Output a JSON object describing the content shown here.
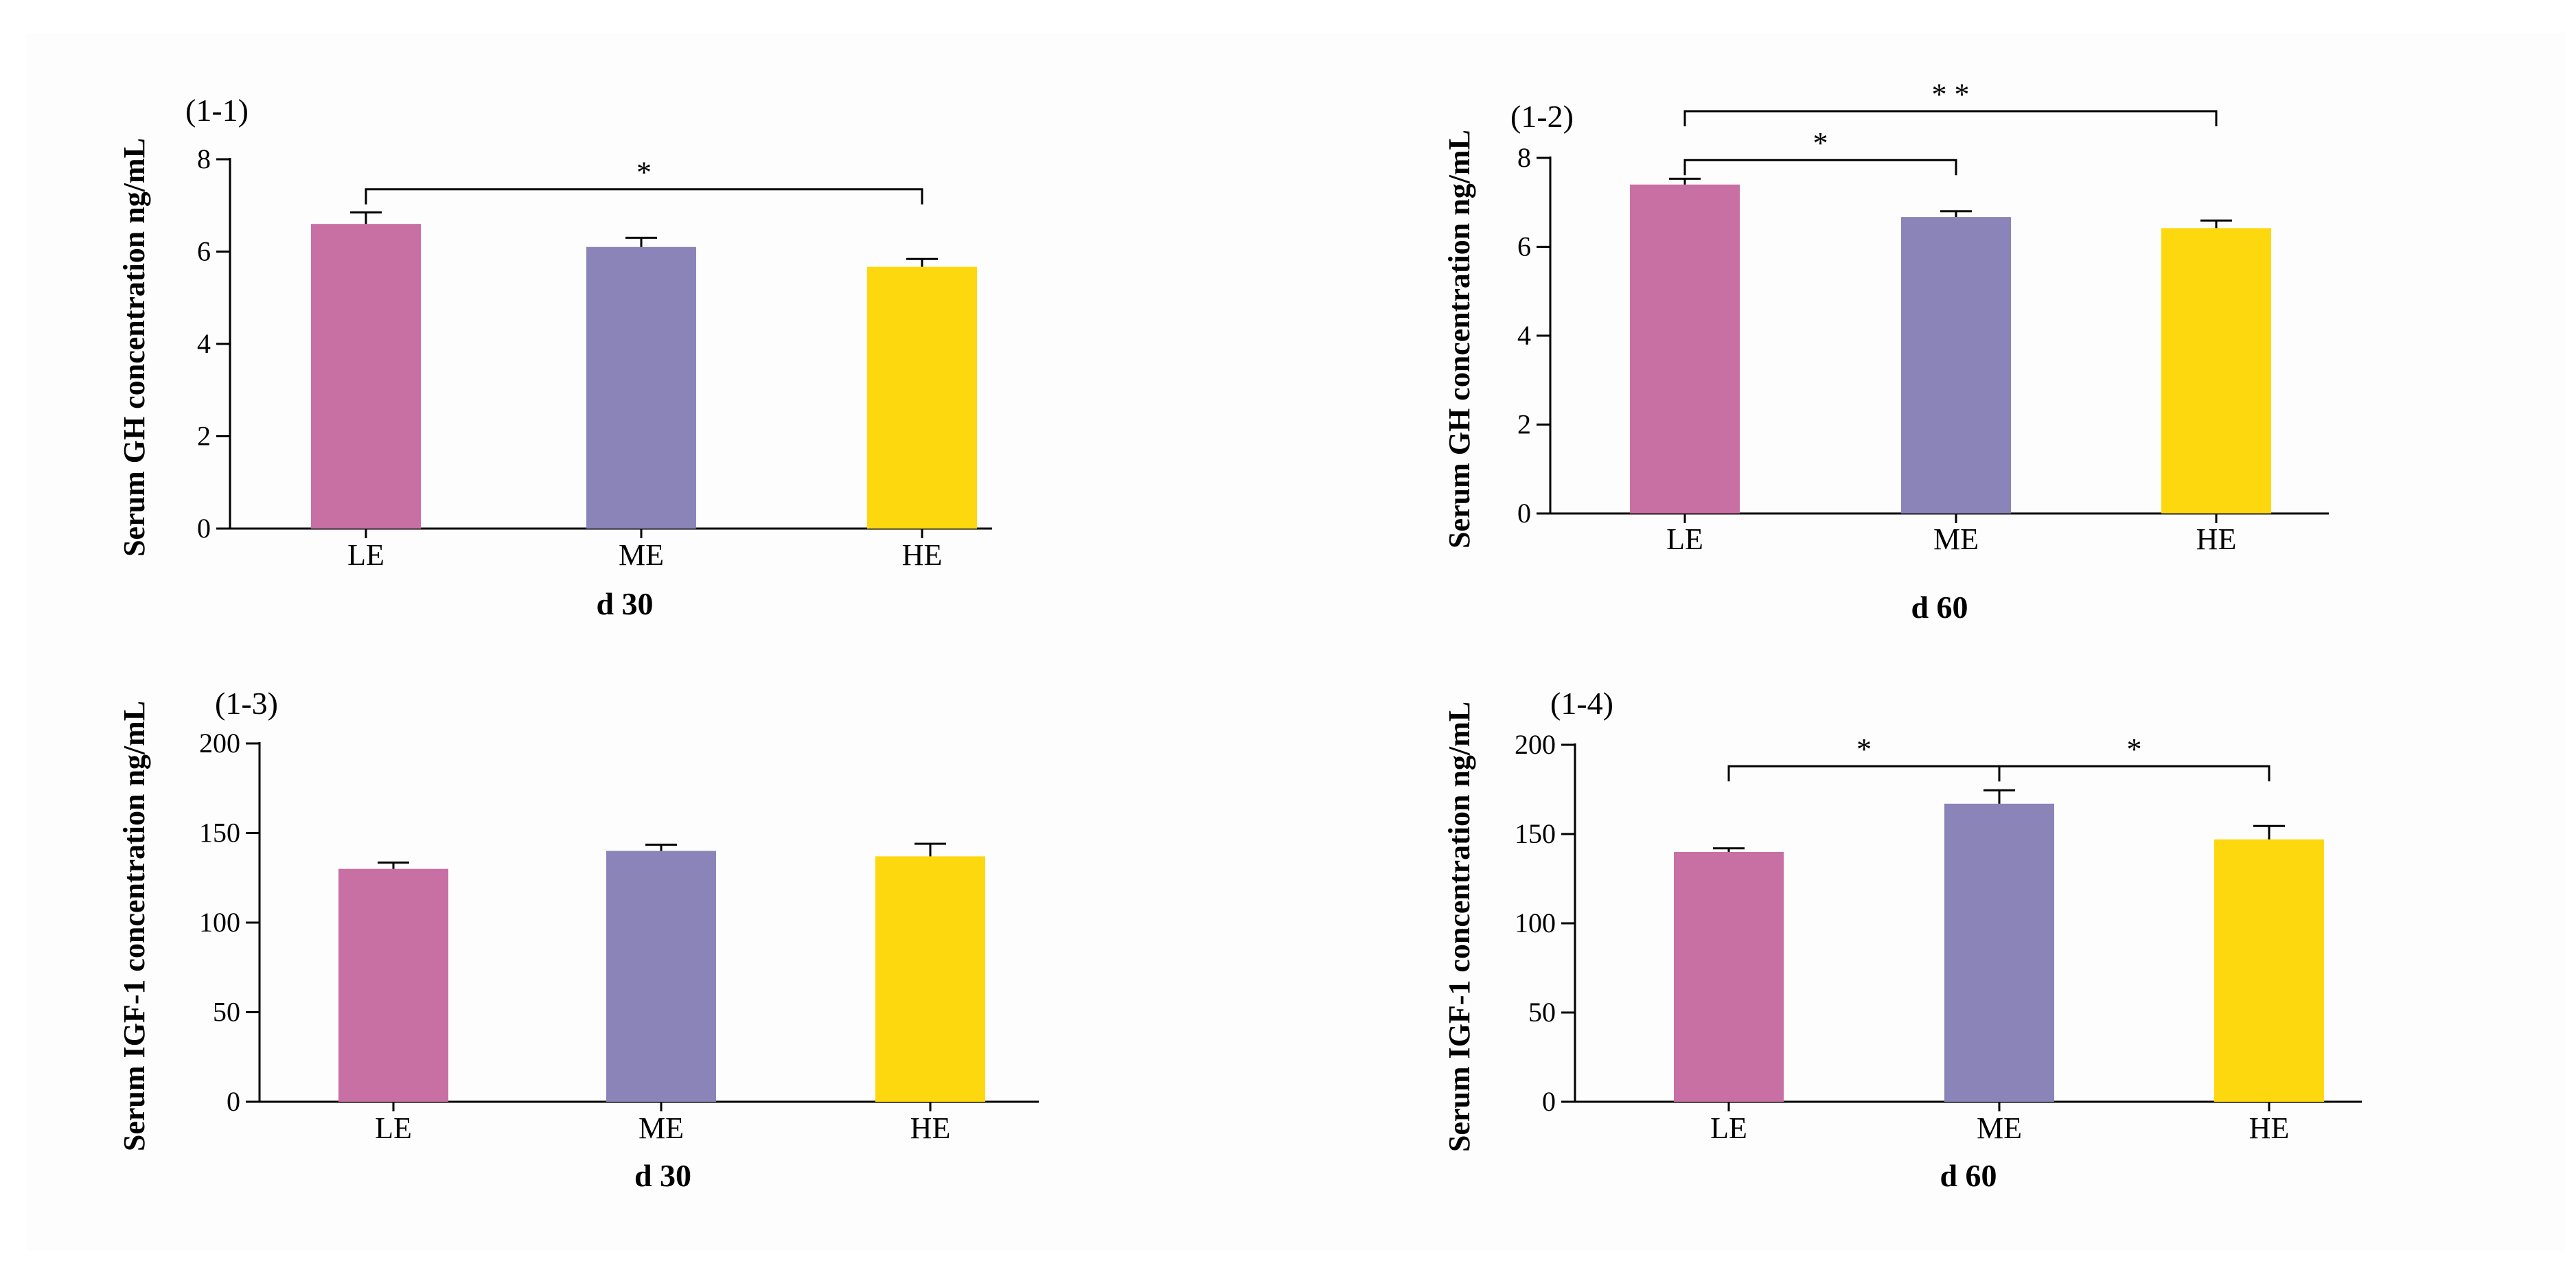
{
  "chart_data": [
    {
      "type": "bar",
      "panel": "(1-1)",
      "categories": [
        "LE",
        "ME",
        "HE"
      ],
      "values": [
        6.6,
        6.1,
        5.67
      ],
      "errors": [
        0.25,
        0.2,
        0.17
      ],
      "colors": [
        "#c86fa4",
        "#8b84b8",
        "#fdd80f"
      ],
      "xlabel": "d 30",
      "ylabel": "Serum GH concentration ng/mL",
      "ylim": [
        0,
        8
      ],
      "yticks": [
        "0",
        "2",
        "4",
        "6",
        "8"
      ],
      "significance": [
        {
          "from": 0,
          "to": 2,
          "label": "*",
          "level": 7.35
        }
      ]
    },
    {
      "type": "bar",
      "panel": "(1-2)",
      "categories": [
        "LE",
        "ME",
        "HE"
      ],
      "values": [
        7.4,
        6.67,
        6.42
      ],
      "errors": [
        0.13,
        0.13,
        0.17
      ],
      "colors": [
        "#c86fa4",
        "#8b84b8",
        "#fdd80f"
      ],
      "xlabel": "d 60",
      "ylabel": "Serum GH concentration ng/mL",
      "ylim": [
        0,
        8
      ],
      "yticks": [
        "0",
        "2",
        "4",
        "6",
        "8"
      ],
      "significance": [
        {
          "from": 0,
          "to": 1,
          "label": "*",
          "level": 7.95
        },
        {
          "from": 0,
          "to": 2,
          "label": "* *",
          "level": 9.05
        }
      ]
    },
    {
      "type": "bar",
      "panel": "(1-3)",
      "categories": [
        "LE",
        "ME",
        "HE"
      ],
      "values": [
        130,
        140,
        137
      ],
      "errors": [
        3.5,
        3.5,
        7
      ],
      "colors": [
        "#c86fa4",
        "#8b84b8",
        "#fdd80f"
      ],
      "xlabel": "d 30",
      "ylabel": "Serum IGF-1 concentration ng/mL",
      "ylim": [
        0,
        200
      ],
      "yticks": [
        "0",
        "50",
        "100",
        "150",
        "200"
      ],
      "significance": []
    },
    {
      "type": "bar",
      "panel": "(1-4)",
      "categories": [
        "LE",
        "ME",
        "HE"
      ],
      "values": [
        140,
        167,
        147
      ],
      "errors": [
        2,
        7.5,
        7.5
      ],
      "colors": [
        "#c86fa4",
        "#8b84b8",
        "#fdd80f"
      ],
      "xlabel": "d 60",
      "ylabel": "Serum IGF-1 concentration ng/mL",
      "ylim": [
        0,
        200
      ],
      "yticks": [
        "0",
        "50",
        "100",
        "150",
        "200"
      ],
      "significance": [
        {
          "from": 0,
          "to": 1,
          "label": "*",
          "level": 188
        },
        {
          "from": 1,
          "to": 2,
          "label": "*",
          "level": 188
        }
      ]
    }
  ]
}
